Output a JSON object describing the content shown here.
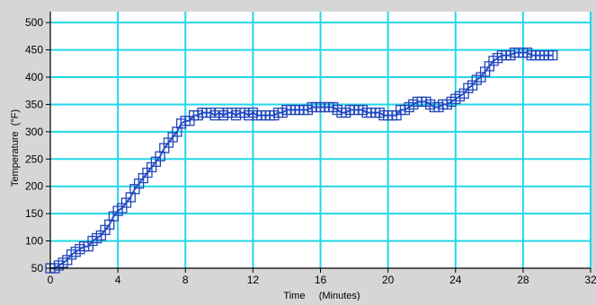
{
  "colors": {
    "background": "#d6d6d6",
    "plot_background": "#ffffff",
    "grid": "#23d7e6",
    "series_line": "#1f4fd6",
    "marker_stroke": "#2346b8",
    "axis": "#000000"
  },
  "chart_data": {
    "type": "line",
    "title": "",
    "xlabel": "Time     (Minutes)",
    "ylabel": "Temperature  (°F)",
    "xlim": [
      0,
      32
    ],
    "ylim": [
      50,
      520
    ],
    "x_ticks": [
      0,
      4,
      8,
      12,
      16,
      20,
      24,
      28,
      32
    ],
    "y_ticks": [
      50,
      100,
      150,
      200,
      250,
      300,
      350,
      400,
      450,
      500
    ],
    "x_tick_labels": [
      "0",
      "4",
      "8",
      "12",
      "16",
      "20",
      "24",
      "28",
      "32"
    ],
    "y_tick_labels": [
      "50",
      "100",
      "150",
      "200",
      "250",
      "300",
      "350",
      "400",
      "450",
      "500"
    ],
    "grid": true,
    "marker": "square",
    "series": [
      {
        "x": [
          0,
          0.25,
          0.5,
          0.75,
          1,
          1.25,
          1.5,
          1.75,
          2,
          2.25,
          2.5,
          2.75,
          3,
          3.25,
          3.5,
          3.75,
          4,
          4.25,
          4.5,
          4.75,
          5,
          5.25,
          5.5,
          5.75,
          6,
          6.25,
          6.5,
          6.75,
          7,
          7.25,
          7.5,
          7.75,
          8,
          8.25,
          8.5,
          8.75,
          9,
          9.25,
          9.5,
          9.75,
          10,
          10.25,
          10.5,
          10.75,
          11,
          11.25,
          11.5,
          11.75,
          12,
          12.25,
          12.5,
          12.75,
          13,
          13.25,
          13.5,
          13.75,
          14,
          14.25,
          14.5,
          14.75,
          15,
          15.25,
          15.5,
          15.75,
          16,
          16.25,
          16.5,
          16.75,
          17,
          17.25,
          17.5,
          17.75,
          18,
          18.25,
          18.5,
          18.75,
          19,
          19.25,
          19.5,
          19.75,
          20,
          20.25,
          20.5,
          20.75,
          21,
          21.25,
          21.5,
          21.75,
          22,
          22.25,
          22.5,
          22.75,
          23,
          23.25,
          23.5,
          23.75,
          24,
          24.25,
          24.5,
          24.75,
          25,
          25.25,
          25.5,
          25.75,
          26,
          26.25,
          26.5,
          26.75,
          27,
          27.25,
          27.5,
          27.75,
          28,
          28.25,
          28.5,
          28.75,
          29,
          29.25,
          29.5,
          29.75
        ],
        "y": [
          50,
          50,
          55,
          60,
          65,
          75,
          80,
          85,
          90,
          90,
          100,
          105,
          110,
          120,
          130,
          145,
          155,
          160,
          170,
          180,
          195,
          205,
          215,
          225,
          235,
          245,
          255,
          270,
          280,
          290,
          300,
          315,
          320,
          320,
          330,
          330,
          335,
          335,
          335,
          330,
          335,
          330,
          335,
          335,
          330,
          335,
          335,
          330,
          335,
          330,
          330,
          330,
          330,
          330,
          335,
          335,
          340,
          340,
          340,
          340,
          340,
          340,
          345,
          345,
          345,
          345,
          345,
          345,
          340,
          335,
          335,
          340,
          340,
          340,
          340,
          335,
          335,
          335,
          335,
          330,
          330,
          330,
          330,
          340,
          340,
          345,
          350,
          355,
          355,
          355,
          350,
          345,
          345,
          350,
          350,
          355,
          360,
          365,
          370,
          380,
          385,
          395,
          400,
          410,
          420,
          430,
          435,
          440,
          440,
          440,
          445,
          445,
          445,
          445,
          440,
          440,
          440,
          440,
          440,
          440
        ]
      }
    ]
  }
}
